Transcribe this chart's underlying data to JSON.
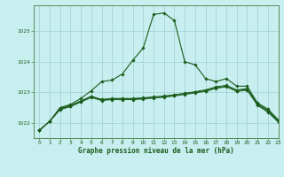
{
  "title": "Graphe pression niveau de la mer (hPa)",
  "background_color": "#c8eef0",
  "grid_color": "#9ecfcf",
  "line_color": "#1a5c1a",
  "border_color": "#5a8a5a",
  "xlim": [
    -0.5,
    23
  ],
  "ylim": [
    1021.5,
    1025.85
  ],
  "yticks": [
    1022,
    1023,
    1024,
    1025
  ],
  "xticks": [
    0,
    1,
    2,
    3,
    4,
    5,
    6,
    7,
    8,
    9,
    10,
    11,
    12,
    13,
    14,
    15,
    16,
    17,
    18,
    19,
    20,
    21,
    22,
    23
  ],
  "series_main": {
    "x": [
      0,
      1,
      2,
      3,
      4,
      5,
      6,
      7,
      8,
      9,
      10,
      11,
      12,
      13,
      14,
      15,
      16,
      17,
      18,
      19,
      20,
      21,
      22,
      23
    ],
    "y": [
      1021.75,
      1022.05,
      1022.5,
      1022.6,
      1022.8,
      1023.05,
      1023.35,
      1023.4,
      1023.6,
      1024.05,
      1024.45,
      1025.55,
      1025.6,
      1025.35,
      1024.0,
      1023.9,
      1023.45,
      1023.35,
      1023.45,
      1023.2,
      1023.2,
      1022.65,
      1022.45,
      1022.1
    ]
  },
  "series_flat1": {
    "x": [
      0,
      1,
      2,
      3,
      4,
      5,
      6,
      7,
      8,
      9,
      10,
      11,
      12,
      13,
      14,
      15,
      16,
      17,
      18,
      19,
      20,
      21,
      22,
      23
    ],
    "y": [
      1021.75,
      1022.05,
      1022.45,
      1022.55,
      1022.7,
      1022.85,
      1022.75,
      1022.78,
      1022.78,
      1022.78,
      1022.8,
      1022.83,
      1022.85,
      1022.9,
      1022.95,
      1023.0,
      1023.05,
      1023.15,
      1023.2,
      1023.05,
      1023.1,
      1022.6,
      1022.38,
      1022.05
    ]
  },
  "series_flat2": {
    "x": [
      0,
      1,
      2,
      3,
      4,
      5,
      6,
      7,
      8,
      9,
      10,
      11,
      12,
      13,
      14,
      15,
      16,
      17,
      18,
      19,
      20,
      21,
      22,
      23
    ],
    "y": [
      1021.75,
      1022.05,
      1022.47,
      1022.57,
      1022.72,
      1022.87,
      1022.77,
      1022.8,
      1022.8,
      1022.8,
      1022.82,
      1022.85,
      1022.88,
      1022.92,
      1022.97,
      1023.02,
      1023.08,
      1023.18,
      1023.23,
      1023.08,
      1023.12,
      1022.62,
      1022.4,
      1022.07
    ]
  },
  "series_flat3": {
    "x": [
      0,
      1,
      2,
      3,
      4,
      5,
      6,
      7,
      8,
      9,
      10,
      11,
      12,
      13,
      14,
      15,
      16,
      17,
      18,
      19,
      20,
      21,
      22,
      23
    ],
    "y": [
      1021.75,
      1022.05,
      1022.43,
      1022.53,
      1022.68,
      1022.83,
      1022.73,
      1022.76,
      1022.76,
      1022.76,
      1022.78,
      1022.81,
      1022.84,
      1022.88,
      1022.93,
      1022.98,
      1023.03,
      1023.13,
      1023.18,
      1023.03,
      1023.07,
      1022.57,
      1022.35,
      1022.02
    ]
  }
}
